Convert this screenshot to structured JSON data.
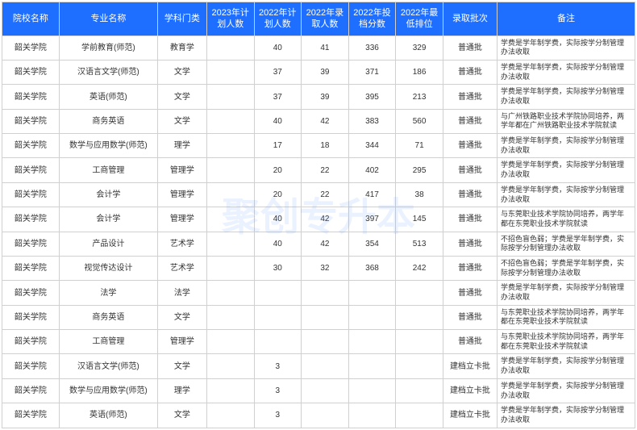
{
  "watermark_text": "聚创专升本",
  "header_bg": "#1e6fff",
  "header_color": "#ffffff",
  "border_color": "#d0d0d0",
  "columns": [
    "院校名称",
    "专业名称",
    "学科门类",
    "2023年计划人数",
    "2022年计划人数",
    "2022年录取人数",
    "2022年投档分数",
    "2022年最低排位",
    "录取批次",
    "备注"
  ],
  "rows": [
    {
      "school": "韶关学院",
      "major": "学前教育(师范)",
      "subject": "教育学",
      "plan23": "",
      "plan22": "40",
      "admit22": "41",
      "score22": "336",
      "rank22": "329",
      "batch": "普通批",
      "remark": "学费是学年制学费，实际按学分制管理办法收取"
    },
    {
      "school": "韶关学院",
      "major": "汉语言文学(师范)",
      "subject": "文学",
      "plan23": "",
      "plan22": "37",
      "admit22": "39",
      "score22": "371",
      "rank22": "186",
      "batch": "普通批",
      "remark": "学费是学年制学费，实际按学分制管理办法收取"
    },
    {
      "school": "韶关学院",
      "major": "英语(师范)",
      "subject": "文学",
      "plan23": "",
      "plan22": "37",
      "admit22": "39",
      "score22": "395",
      "rank22": "213",
      "batch": "普通批",
      "remark": "学费是学年制学费，实际按学分制管理办法收取"
    },
    {
      "school": "韶关学院",
      "major": "商务英语",
      "subject": "文学",
      "plan23": "",
      "plan22": "40",
      "admit22": "42",
      "score22": "383",
      "rank22": "560",
      "batch": "普通批",
      "remark": "与广州铁路职业技术学院协同培养，两学年都在广州铁路职业技术学院就读"
    },
    {
      "school": "韶关学院",
      "major": "数学与应用数学(师范)",
      "subject": "理学",
      "plan23": "",
      "plan22": "17",
      "admit22": "18",
      "score22": "344",
      "rank22": "71",
      "batch": "普通批",
      "remark": "学费是学年制学费，实际按学分制管理办法收取"
    },
    {
      "school": "韶关学院",
      "major": "工商管理",
      "subject": "管理学",
      "plan23": "",
      "plan22": "20",
      "admit22": "22",
      "score22": "402",
      "rank22": "295",
      "batch": "普通批",
      "remark": "学费是学年制学费，实际按学分制管理办法收取"
    },
    {
      "school": "韶关学院",
      "major": "会计学",
      "subject": "管理学",
      "plan23": "",
      "plan22": "20",
      "admit22": "22",
      "score22": "417",
      "rank22": "38",
      "batch": "普通批",
      "remark": "学费是学年制学费，实际按学分制管理办法收取"
    },
    {
      "school": "韶关学院",
      "major": "会计学",
      "subject": "管理学",
      "plan23": "",
      "plan22": "40",
      "admit22": "42",
      "score22": "397",
      "rank22": "145",
      "batch": "普通批",
      "remark": "与东莞职业技术学院协同培养，两学年都在东莞职业技术学院就读"
    },
    {
      "school": "韶关学院",
      "major": "产品设计",
      "subject": "艺术学",
      "plan23": "",
      "plan22": "40",
      "admit22": "42",
      "score22": "354",
      "rank22": "513",
      "batch": "普通批",
      "remark": "不招色盲色弱；学费是学年制学费，实际按学分制管理办法收取"
    },
    {
      "school": "韶关学院",
      "major": "视觉传达设计",
      "subject": "艺术学",
      "plan23": "",
      "plan22": "30",
      "admit22": "32",
      "score22": "368",
      "rank22": "242",
      "batch": "普通批",
      "remark": "不招色盲色弱；学费是学年制学费，实际按学分制管理办法收取"
    },
    {
      "school": "韶关学院",
      "major": "法学",
      "subject": "法学",
      "plan23": "",
      "plan22": "",
      "admit22": "",
      "score22": "",
      "rank22": "",
      "batch": "普通批",
      "remark": "学费是学年制学费，实际按学分制管理办法收取"
    },
    {
      "school": "韶关学院",
      "major": "商务英语",
      "subject": "文学",
      "plan23": "",
      "plan22": "",
      "admit22": "",
      "score22": "",
      "rank22": "",
      "batch": "普通批",
      "remark": "与东莞职业技术学院协同培养，两学年都在东莞职业技术学院就读"
    },
    {
      "school": "韶关学院",
      "major": "工商管理",
      "subject": "管理学",
      "plan23": "",
      "plan22": "",
      "admit22": "",
      "score22": "",
      "rank22": "",
      "batch": "普通批",
      "remark": "与东莞职业技术学院协同培养，两学年都在东莞职业技术学院就读"
    },
    {
      "school": "韶关学院",
      "major": "汉语言文学(师范)",
      "subject": "文学",
      "plan23": "",
      "plan22": "3",
      "admit22": "",
      "score22": "",
      "rank22": "",
      "batch": "建档立卡批",
      "remark": "学费是学年制学费，实际按学分制管理办法收取"
    },
    {
      "school": "韶关学院",
      "major": "数学与应用数学(师范)",
      "subject": "理学",
      "plan23": "",
      "plan22": "3",
      "admit22": "",
      "score22": "",
      "rank22": "",
      "batch": "建档立卡批",
      "remark": "学费是学年制学费，实际按学分制管理办法收取"
    },
    {
      "school": "韶关学院",
      "major": "英语(师范)",
      "subject": "文学",
      "plan23": "",
      "plan22": "3",
      "admit22": "",
      "score22": "",
      "rank22": "",
      "batch": "建档立卡批",
      "remark": "学费是学年制学费，实际按学分制管理办法收取"
    }
  ]
}
